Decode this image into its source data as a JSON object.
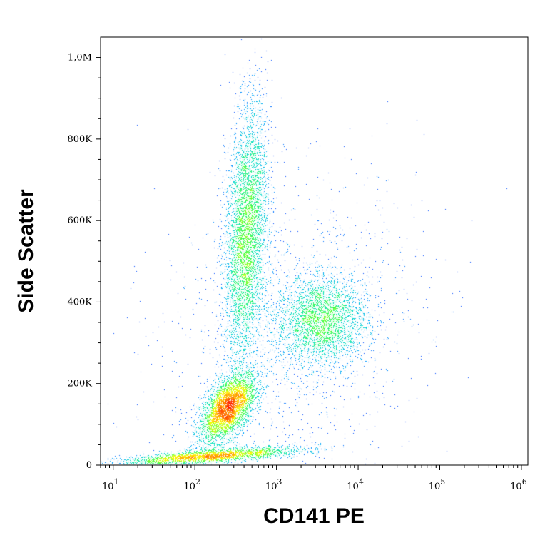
{
  "chart_data": {
    "type": "scatter",
    "subtype": "flow-cytometry density dot plot",
    "title": "",
    "xlabel": "CD141 PE",
    "ylabel": "Side Scatter",
    "x_scale": "log",
    "xlim": [
      7,
      1200000
    ],
    "ylim": [
      0,
      1050000
    ],
    "x_ticks": [
      {
        "value": 10,
        "base": "10",
        "exp": "1"
      },
      {
        "value": 100,
        "base": "10",
        "exp": "2"
      },
      {
        "value": 1000,
        "base": "10",
        "exp": "3"
      },
      {
        "value": 10000,
        "base": "10",
        "exp": "4"
      },
      {
        "value": 100000,
        "base": "10",
        "exp": "5"
      },
      {
        "value": 1000000,
        "base": "10",
        "exp": "6"
      }
    ],
    "y_ticks": [
      {
        "value": 0,
        "label": "0"
      },
      {
        "value": 200000,
        "label": "200K"
      },
      {
        "value": 400000,
        "label": "400K"
      },
      {
        "value": 600000,
        "label": "600K"
      },
      {
        "value": 800000,
        "label": "800K"
      },
      {
        "value": 1000000,
        "label": "1,0M"
      }
    ],
    "grid": false,
    "density_colormap": [
      "#0000ff",
      "#00a0ff",
      "#00e0c0",
      "#40ff40",
      "#ffff00",
      "#ff8000",
      "#ff0000"
    ],
    "populations": [
      {
        "x_center": 250,
        "y_center": 140000,
        "x_spread_decades": 0.17,
        "y_spread": 42000,
        "correlation": 0.55,
        "points": 4200
      },
      {
        "x_center": 420,
        "y_center": 560000,
        "x_spread_decades": 0.13,
        "y_spread": 160000,
        "correlation": 0.3,
        "points": 5200
      },
      {
        "x_center": 3500,
        "y_center": 355000,
        "x_spread_decades": 0.28,
        "y_spread": 55000,
        "correlation": 0.0,
        "points": 3400
      },
      {
        "x_center": 150,
        "y_center": 22000,
        "x_spread_decades": 0.55,
        "y_spread": 11000,
        "correlation": 0.7,
        "points": 2600
      },
      {
        "x_center": 1500,
        "y_center": 330000,
        "x_spread_decades": 0.8,
        "y_spread": 190000,
        "correlation": 0.2,
        "points": 1500
      }
    ]
  }
}
